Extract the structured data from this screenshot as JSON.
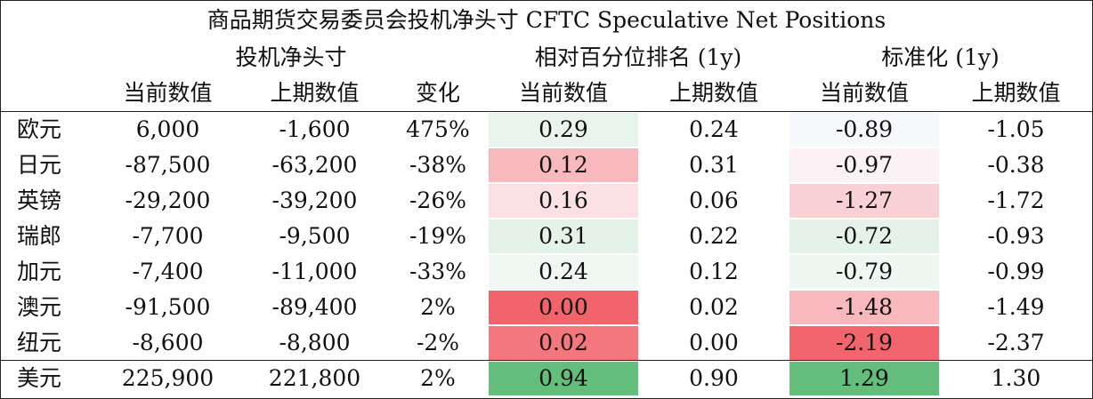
{
  "title": "商品期货交易委员会投机净头寸 CFTC Speculative Net Positions",
  "groups": [
    "投机净头寸",
    "相对百分位排名 (1y)",
    "标准化 (1y)"
  ],
  "columns": [
    "当前数值",
    "上期数值",
    "变化",
    "当前数值",
    "上期数值",
    "当前数值",
    "上期数值"
  ],
  "rows": [
    [
      "欧元",
      "6,000",
      "-1,600",
      "475%",
      "0.29",
      "0.24",
      "-0.89",
      "-1.05"
    ],
    [
      "日元",
      "-87,500",
      "-63,200",
      "-38%",
      "0.12",
      "0.31",
      "-0.97",
      "-0.38"
    ],
    [
      "英镑",
      "-29,200",
      "-39,200",
      "-26%",
      "0.16",
      "0.06",
      "-1.27",
      "-1.72"
    ],
    [
      "瑞郎",
      "-7,700",
      "-9,500",
      "-19%",
      "0.31",
      "0.22",
      "-0.72",
      "-0.93"
    ],
    [
      "加元",
      "-7,400",
      "-11,000",
      "-33%",
      "0.24",
      "0.12",
      "-0.79",
      "-0.99"
    ],
    [
      "澳元",
      "-91,500",
      "-89,400",
      "2%",
      "0.00",
      "0.02",
      "-1.48",
      "-1.49"
    ],
    [
      "纽元",
      "-8,600",
      "-8,800",
      "-2%",
      "0.02",
      "0.00",
      "-2.19",
      "-2.37"
    ],
    [
      "美元",
      "225,900",
      "221,800",
      "2%",
      "0.94",
      "0.90",
      "1.29",
      "1.30"
    ]
  ]
}
